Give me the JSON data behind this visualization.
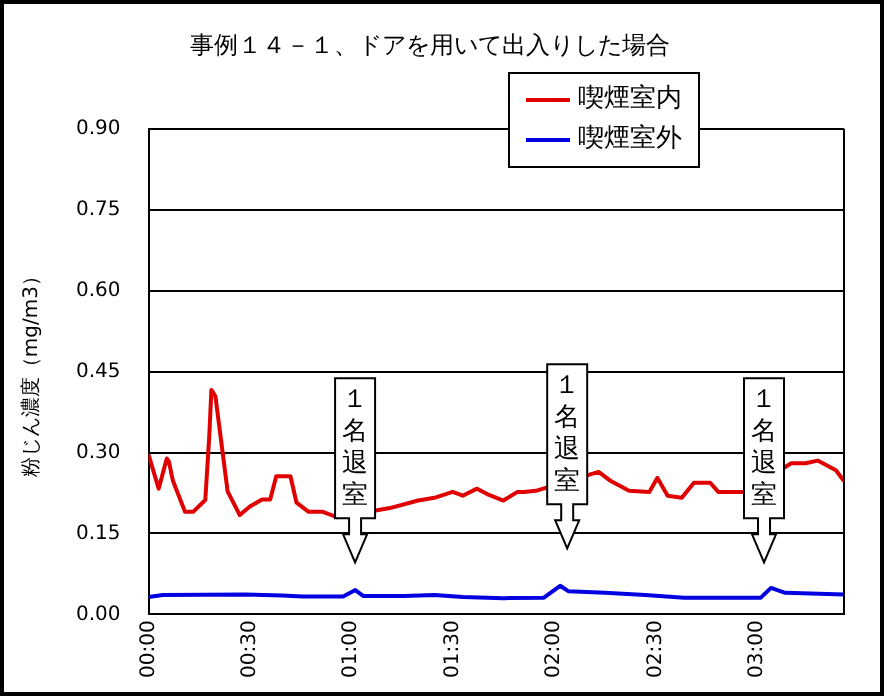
{
  "chart_data": {
    "type": "line",
    "title": "事例１４－１、ドアを用いて出入りした場合",
    "ylabel": "粉じん濃度（mg/m3）",
    "xlim": [
      0,
      3.43
    ],
    "xticks": [
      {
        "value": 0,
        "label": "00:00"
      },
      {
        "value": 0.5,
        "label": "00:30"
      },
      {
        "value": 1,
        "label": "01:00"
      },
      {
        "value": 1.5,
        "label": "01:30"
      },
      {
        "value": 2,
        "label": "02:00"
      },
      {
        "value": 2.5,
        "label": "02:30"
      },
      {
        "value": 3,
        "label": "03:00"
      }
    ],
    "ylim": [
      0,
      0.9
    ],
    "yticks": [
      {
        "value": 0,
        "label": "0.00"
      },
      0.15,
      {
        "value": 0.3,
        "label": "0.30"
      },
      0.45,
      {
        "value": 0.6,
        "label": "0.60"
      },
      0.75,
      {
        "value": 0.9,
        "label": "0.90"
      }
    ],
    "grid": "y",
    "legend": "top right",
    "marker": "none",
    "line_style": "solid",
    "series": [
      {
        "name": "喫煙室内",
        "color": "#e00000",
        "x": [
          0,
          0.05,
          0.09,
          0.1,
          0.12,
          0.18,
          0.22,
          0.28,
          0.3,
          0.31,
          0.33,
          0.39,
          0.45,
          0.5,
          0.56,
          0.6,
          0.63,
          0.7,
          0.73,
          0.79,
          0.86,
          0.93,
          0.99,
          1.08,
          1.19,
          1.33,
          1.41,
          1.5,
          1.55,
          1.62,
          1.67,
          1.75,
          1.82,
          1.85,
          1.91,
          2.22,
          2.28,
          2.37,
          2.47,
          2.51,
          2.56,
          2.63,
          2.69,
          2.77,
          2.81,
          2.94,
          3.17,
          3.24,
          3.3,
          3.39,
          3.43
        ],
        "values": [
          0.296,
          0.233,
          0.289,
          0.284,
          0.248,
          0.19,
          0.19,
          0.212,
          0.333,
          0.416,
          0.404,
          0.228,
          0.184,
          0.2,
          0.213,
          0.213,
          0.256,
          0.256,
          0.207,
          0.19,
          0.19,
          0.18,
          null,
          null,
          0.197,
          0.211,
          0.216,
          0.227,
          0.22,
          0.233,
          0.223,
          0.211,
          0.227,
          0.227,
          0.229,
          0.264,
          0.247,
          0.229,
          0.227,
          0.253,
          0.22,
          0.216,
          0.244,
          0.244,
          0.227,
          0.227,
          0.28,
          0.28,
          0.285,
          0.267,
          0.247
        ]
      },
      {
        "name": "喫煙室外",
        "color": "#0000e0",
        "x": [
          0,
          0.07,
          0.47,
          0.66,
          0.76,
          0.96,
          1.02,
          1.06,
          1.26,
          1.41,
          1.55,
          1.75,
          1.95,
          2.03,
          2.07,
          2.25,
          2.45,
          2.64,
          3.02,
          3.07,
          3.14,
          3.43
        ],
        "values": [
          0.032,
          0.036,
          0.037,
          0.035,
          0.033,
          0.033,
          0.045,
          0.034,
          0.034,
          0.036,
          0.032,
          0.03,
          0.031,
          0.053,
          0.043,
          0.04,
          0.036,
          0.031,
          0.031,
          0.049,
          0.04,
          0.037
        ]
      }
    ],
    "annotations": [
      "１名退室",
      "１名退室",
      "１名退室"
    ]
  }
}
